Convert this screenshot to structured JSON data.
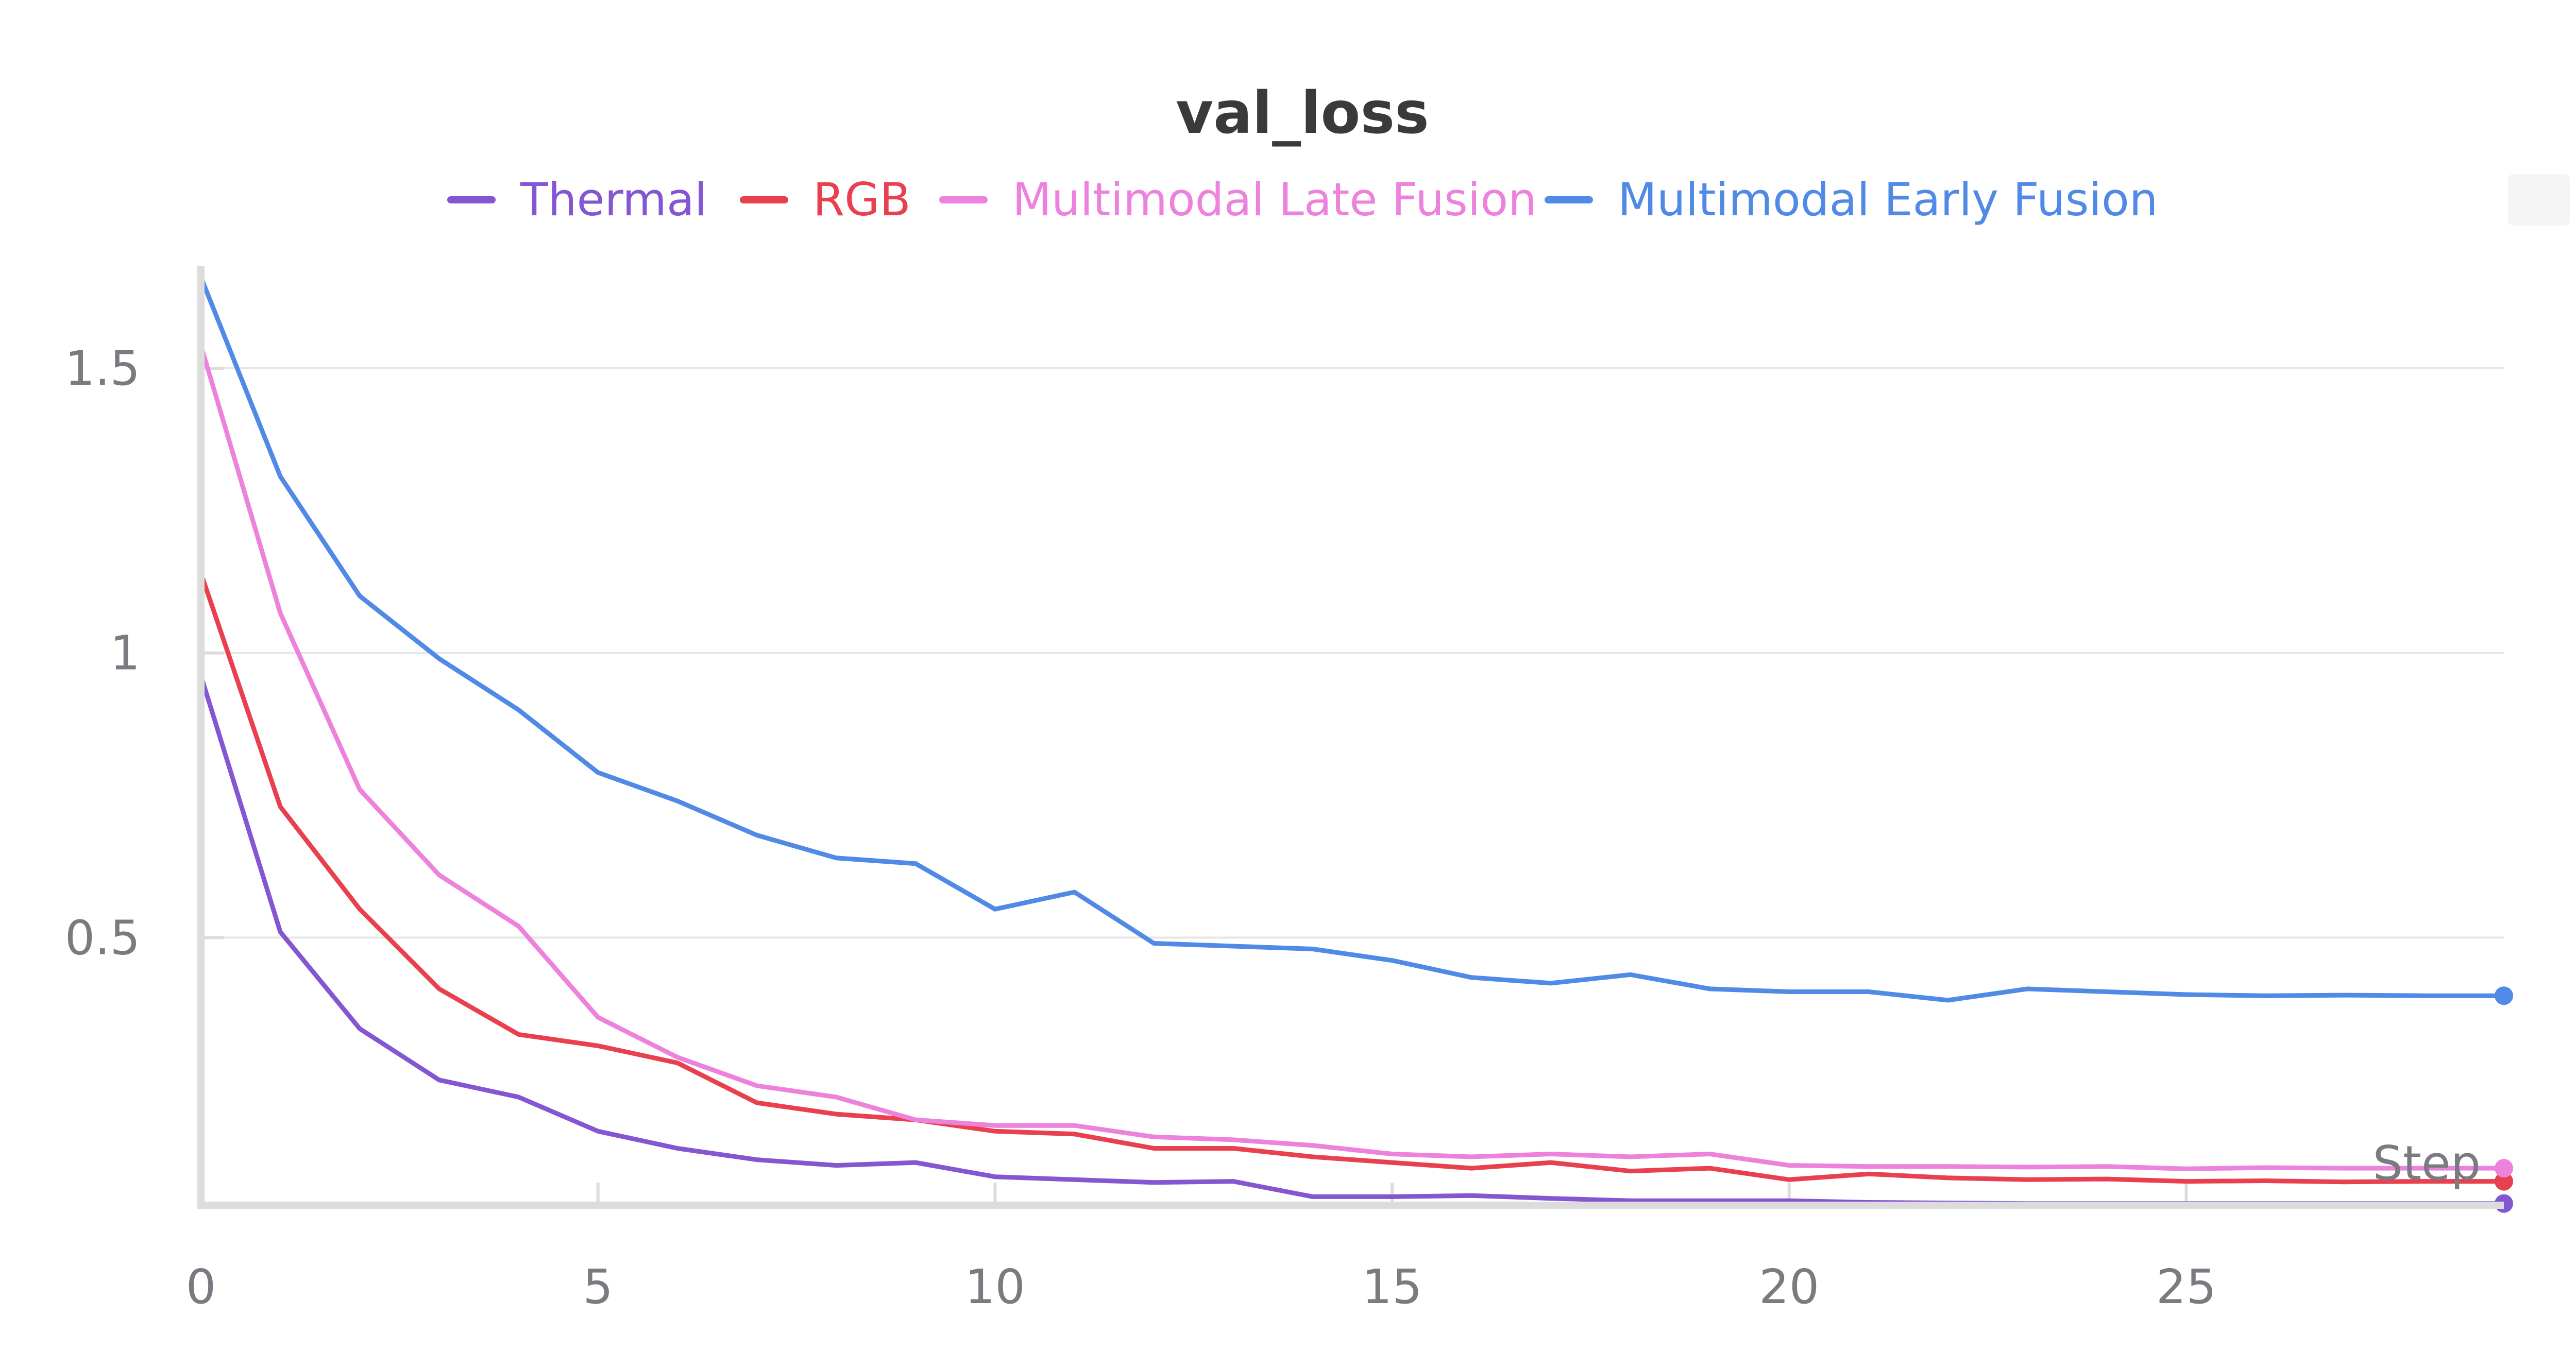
{
  "chart_data": {
    "type": "line",
    "title": "val_loss",
    "xlabel": "Step",
    "ylabel": "",
    "xlim": [
      0,
      29
    ],
    "ylim": [
      0.03,
      1.68
    ],
    "x_ticks": [
      0,
      5,
      10,
      15,
      20,
      25
    ],
    "y_ticks": [
      0.5,
      1.0,
      1.5
    ],
    "y_tick_labels": [
      "0.5",
      "1",
      "1.5"
    ],
    "x_tick_labels": [
      "0",
      "5",
      "10",
      "15",
      "20",
      "25"
    ],
    "grid": "horizontal",
    "legend_position": "top-center",
    "x": [
      0,
      1,
      2,
      3,
      4,
      5,
      6,
      7,
      8,
      9,
      10,
      11,
      12,
      13,
      14,
      15,
      16,
      17,
      18,
      19,
      20,
      21,
      22,
      23,
      24,
      25,
      26,
      27,
      28,
      29
    ],
    "series": [
      {
        "name": "Thermal",
        "color": "#8456d2",
        "values": [
          0.96,
          0.51,
          0.34,
          0.25,
          0.22,
          0.16,
          0.13,
          0.11,
          0.1,
          0.105,
          0.08,
          0.075,
          0.07,
          0.072,
          0.045,
          0.045,
          0.047,
          0.042,
          0.038,
          0.038,
          0.038,
          0.035,
          0.034,
          0.033,
          0.033,
          0.033,
          0.033,
          0.033,
          0.033,
          0.033
        ]
      },
      {
        "name": "RGB",
        "color": "#e8404e",
        "values": [
          1.14,
          0.73,
          0.55,
          0.41,
          0.33,
          0.31,
          0.28,
          0.21,
          0.19,
          0.18,
          0.16,
          0.155,
          0.13,
          0.13,
          0.115,
          0.105,
          0.095,
          0.105,
          0.09,
          0.095,
          0.075,
          0.085,
          0.078,
          0.075,
          0.076,
          0.072,
          0.073,
          0.071,
          0.072,
          0.072
        ]
      },
      {
        "name": "Multimodal Late Fusion",
        "color": "#ec82dc",
        "values": [
          1.54,
          1.07,
          0.76,
          0.61,
          0.52,
          0.36,
          0.29,
          0.24,
          0.22,
          0.18,
          0.17,
          0.17,
          0.15,
          0.145,
          0.135,
          0.12,
          0.115,
          0.12,
          0.115,
          0.12,
          0.1,
          0.098,
          0.098,
          0.097,
          0.098,
          0.094,
          0.096,
          0.095,
          0.095,
          0.095
        ]
      },
      {
        "name": "Multimodal Early Fusion",
        "color": "#508ae6",
        "values": [
          1.66,
          1.31,
          1.1,
          0.99,
          0.9,
          0.79,
          0.74,
          0.68,
          0.64,
          0.63,
          0.55,
          0.58,
          0.49,
          0.485,
          0.48,
          0.46,
          0.43,
          0.42,
          0.435,
          0.41,
          0.405,
          0.405,
          0.39,
          0.41,
          0.405,
          0.4,
          0.398,
          0.399,
          0.398,
          0.398
        ]
      }
    ]
  }
}
